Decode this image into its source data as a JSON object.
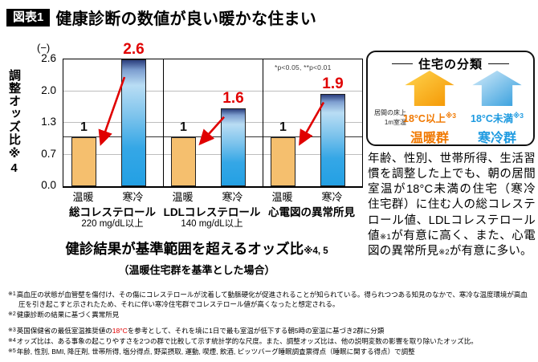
{
  "header": {
    "badge": "図表1",
    "title": "健康診断の数値が良い暖かな住まい"
  },
  "chart_data": {
    "type": "bar",
    "unit_label": "(−)",
    "ylabel": "調整オッズ比※4",
    "ylim": [
      0,
      2.6
    ],
    "yticks": [
      "0.0",
      "0.7",
      "1.3",
      "2.0",
      "2.6"
    ],
    "reference_value": 1,
    "significance_note": "*p<0.05, **p<0.01",
    "bar_categories": [
      "温暖",
      "寒冷"
    ],
    "groups": [
      {
        "label": "総コレステロール",
        "sublabel": "220 mg/dL以上",
        "warm_value": 1,
        "cold_value": 2.6,
        "warm_label": "1",
        "cold_label": "2.6"
      },
      {
        "label": "LDLコレステロール",
        "sublabel": "140 mg/dL以上",
        "warm_value": 1,
        "cold_value": 1.6,
        "warm_label": "1",
        "cold_label": "1.6"
      },
      {
        "label": "心電図の異常所見",
        "sublabel": "",
        "warm_value": 1,
        "cold_value": 1.9,
        "warm_label": "1",
        "cold_label": "1.9"
      }
    ],
    "caption": "健診結果が基準範囲を超えるオッズ比",
    "caption_ref": "※4, 5",
    "subcaption": "（温暖住宅群を基準とした場合）",
    "colors": {
      "warm_bar": "#F5BF6E",
      "cold_bar": "#23A0E4",
      "accent_red": "#E00000"
    }
  },
  "classification": {
    "title": "住宅の分類",
    "note_line1": "居間の床上",
    "note_line2": "1m室温",
    "warm": {
      "temp": "18°C以上",
      "ref": "※3",
      "group": "温暖群",
      "color": "#F07800"
    },
    "cold": {
      "temp": "18°C未満",
      "ref": "※3",
      "group": "寒冷群",
      "color": "#1D9AE0"
    }
  },
  "summary": {
    "part1": "年齢、性別、世帯所得、生活習慣を調整した上でも、朝の居間室温が18°C未満の住宅（寒冷住宅群）に住む人の総コレステロール値、LDLコレステロール値",
    "ref1": "※1",
    "part2": "が有意に高く、また、心電図の異常所見",
    "ref2": "※2",
    "part3": "が有意に多い。"
  },
  "footnotes": [
    {
      "marker": "※1",
      "text1": "高血圧の状態が血管壁を傷付け、その傷にコレステロールが沈着して動脈硬化が促進されることが知られている。得られつつある知見のなかで、寒冷な温度環境が高血圧を引き起こすと示されたため、それに伴い寒冷住宅群でコレステロール値が高くなったと想定される。",
      "red": "",
      "text2": ""
    },
    {
      "marker": "※2",
      "text1": "健康診断の結果に基づく異常所見",
      "red": "",
      "text2": ""
    },
    {
      "marker": "※3",
      "text1": "英国保健省の最低室温推奨値の",
      "red": "18°C",
      "text2": "を参考として、それを境に1日で最も室温が低下する朝5時の室温に基づき2群に分類"
    },
    {
      "marker": "※4",
      "text1": "オッズ比は、ある事象の起こりやすさを2つの群で比較して示す統計学的な尺度。また、調整オッズ比は、他の説明変数の影響を取り除いたオッズ比。",
      "red": "",
      "text2": ""
    },
    {
      "marker": "※5",
      "text1": "年齢, 性別, BMI, 降圧剤, 世帯所得, 塩分得点, 野菜摂取, 運動, 喫煙, 飲酒, ピッツバーグ睡眠調査票得点（睡眠に関する得点）で調整",
      "red": "",
      "text2": ""
    }
  ]
}
